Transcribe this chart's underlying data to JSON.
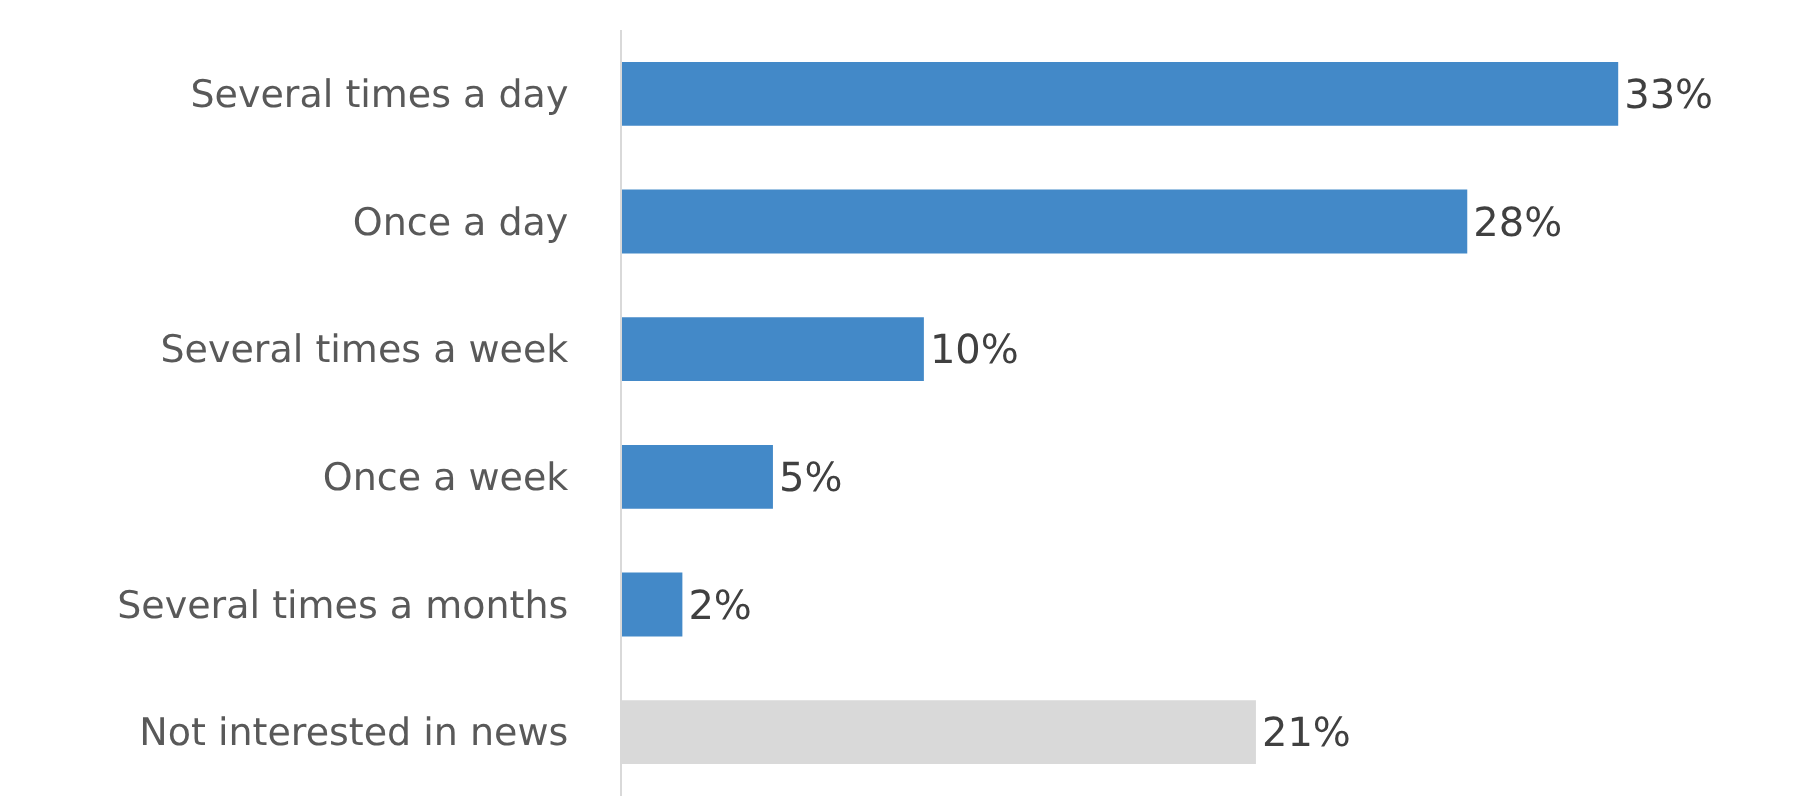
{
  "chart_data": {
    "type": "bar",
    "orientation": "horizontal",
    "categories": [
      "Several times a day",
      "Once a day",
      "Several times a week",
      "Once a week",
      "Several times a months",
      "Not interested in news"
    ],
    "values": [
      33,
      28,
      10,
      5,
      2,
      21
    ],
    "colors": [
      "#4389c8",
      "#4389c8",
      "#4389c8",
      "#4389c8",
      "#4389c8",
      "#d9d9d9"
    ],
    "value_labels": [
      "33%",
      "28%",
      "10%",
      "5%",
      "2%",
      "21%"
    ]
  }
}
